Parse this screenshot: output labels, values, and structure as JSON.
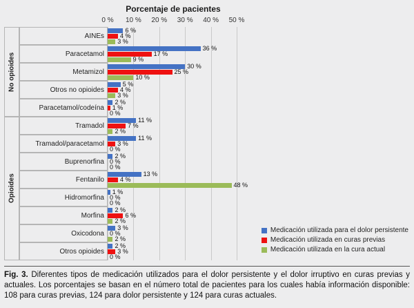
{
  "chart_data": {
    "type": "bar",
    "orientation": "horizontal",
    "title": "Porcentaje de pacientes",
    "xlim": [
      0,
      50
    ],
    "tick_values": [
      0,
      10,
      20,
      30,
      40,
      50
    ],
    "xticks": [
      "0 %",
      "10 %",
      "20 %",
      "30 %",
      "40 %",
      "50 %"
    ],
    "grid": "vertical",
    "legend_position": "bottom-right",
    "value_suffix": " %",
    "groups": [
      {
        "label": "No opioides",
        "categories": [
          "AINEs",
          "Paracetamol",
          "Metamizol",
          "Otros no opioides",
          "Paracetamol/codeína"
        ]
      },
      {
        "label": "Opioides",
        "categories": [
          "Tramadol",
          "Tramadol/paracetamol",
          "Buprenorfina",
          "Fentanilo",
          "Hidromorfina",
          "Morfina",
          "Oxicodona",
          "Otros opioides"
        ]
      }
    ],
    "categories": [
      "AINEs",
      "Paracetamol",
      "Metamizol",
      "Otros no opioides",
      "Paracetamol/codeína",
      "Tramadol",
      "Tramadol/paracetamol",
      "Buprenorfina",
      "Fentanilo",
      "Hidromorfina",
      "Morfina",
      "Oxicodona",
      "Otros opioides"
    ],
    "series": [
      {
        "name": "Medicación utilizada para el dolor persistente",
        "color": "#4472c4",
        "values": [
          6,
          36,
          30,
          5,
          2,
          11,
          11,
          2,
          13,
          1,
          2,
          3,
          2
        ]
      },
      {
        "name": "Medicación utilizada en curas previas",
        "color": "#ee1111",
        "values": [
          4,
          17,
          25,
          4,
          1,
          7,
          3,
          0,
          4,
          0,
          6,
          0,
          3
        ]
      },
      {
        "name": "Medicación utilizada en la cura actual",
        "color": "#9bbb59",
        "values": [
          3,
          9,
          10,
          3,
          0,
          2,
          0,
          0,
          48,
          0,
          2,
          2,
          0
        ]
      }
    ]
  },
  "caption": {
    "fig_label": "Fig. 3.",
    "text": " Diferentes tipos de medicación utilizados para el dolor persistente y el dolor irruptivo en curas previas y actuales. Los porcentajes se basan en el número total de pacientes para los cuales había información disponible: 108 para curas previas, 124 para dolor persistente y 124 para curas actuales."
  }
}
